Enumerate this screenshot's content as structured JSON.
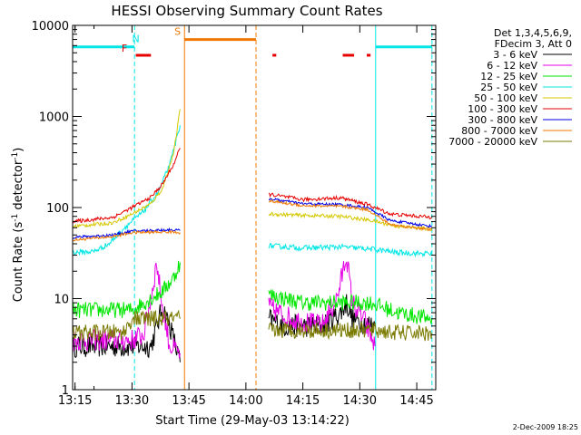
{
  "colors": {
    "background": "#ffffff",
    "axes": "#000000",
    "3-6 keV": "#000000",
    "6-12 keV": "#e600e6",
    "12-25 keV": "#00e600",
    "25-50 keV": "#00e6e6",
    "50-100 keV": "#d6c800",
    "100-300 keV": "#e60000",
    "300-800 keV": "#0000e6",
    "800-7000 keV": "#f07800",
    "7000-20000 keV": "#7a7a00",
    "night": "#00e6e6",
    "saa": "#f07800",
    "flare": "#e60000"
  },
  "legend": {
    "header_line1": "Det 1,3,4,5,6,9,",
    "header_line2": "FDecim 3, Att 0",
    "items": [
      {
        "label": "3 - 6 keV",
        "color": "#000000"
      },
      {
        "label": "6 - 12 keV",
        "color": "#e600e6"
      },
      {
        "label": "12 - 25 keV",
        "color": "#00e600"
      },
      {
        "label": "25 - 50 keV",
        "color": "#00e6e6"
      },
      {
        "label": "50 - 100 keV",
        "color": "#d6c800"
      },
      {
        "label": "100 - 300 keV",
        "color": "#e60000"
      },
      {
        "label": "300 - 800 keV",
        "color": "#0000e6"
      },
      {
        "label": "800 - 7000 keV",
        "color": "#f07800"
      },
      {
        "label": "7000 - 20000 keV",
        "color": "#7a7a00"
      }
    ]
  },
  "stamp": "2-Dec-2009 18:25",
  "chart_data": {
    "type": "line",
    "title": "HESSI Observing Summary Count Rates",
    "xlabel": "Start Time (29-May-03 13:14:22)",
    "ylabel": "Count Rate (s",
    "ylabel_sup": "-1",
    "ylabel_mid": " detector",
    "ylabel_end": ")",
    "y_scale": "log",
    "ylim": [
      1,
      10000
    ],
    "xlim": [
      "13:14:22",
      "14:50:00"
    ],
    "x_ticks": [
      "13:15",
      "13:30",
      "13:45",
      "14:00",
      "14:15",
      "14:30",
      "14:45"
    ],
    "y_ticks": [
      "1",
      "10",
      "100",
      "1000",
      "10000"
    ],
    "grid": false,
    "legend_position": "outside-right",
    "annotations": [
      {
        "text": "F",
        "x": "13:28",
        "color": "#e60000"
      },
      {
        "text": "N",
        "x": "13:31",
        "color": "#00e6e6"
      },
      {
        "text": "S",
        "x": "13:42",
        "color": "#f07800"
      }
    ],
    "vertical_markers": [
      {
        "x": "13:14:22",
        "style": "solid",
        "color": "#00e6e6"
      },
      {
        "x": "13:30:40",
        "style": "dashed",
        "color": "#00e6e6"
      },
      {
        "x": "13:43:50",
        "style": "solid",
        "color": "#f07800"
      },
      {
        "x": "14:02:40",
        "style": "dashed",
        "color": "#f07800"
      },
      {
        "x": "14:34:10",
        "style": "solid",
        "color": "#00e6e6"
      },
      {
        "x": "14:49:00",
        "style": "dashed",
        "color": "#00e6e6"
      }
    ],
    "status_bars": [
      {
        "name": "night",
        "start": "13:14:22",
        "end": "13:30:40",
        "y": 5800,
        "color": "#00e6e6"
      },
      {
        "name": "night",
        "start": "14:34:10",
        "end": "14:49:00",
        "y": 5800,
        "color": "#00e6e6"
      },
      {
        "name": "saa",
        "start": "13:43:50",
        "end": "14:02:40",
        "y": 7000,
        "color": "#f07800"
      },
      {
        "name": "flare",
        "start": "13:31:00",
        "end": "13:35:00",
        "y": 4700,
        "color": "#e60000"
      },
      {
        "name": "flare",
        "start": "14:07:00",
        "end": "14:08:00",
        "y": 4700,
        "color": "#e60000"
      },
      {
        "name": "flare",
        "start": "14:25:30",
        "end": "14:28:30",
        "y": 4700,
        "color": "#e60000"
      },
      {
        "name": "flare",
        "start": "14:31:50",
        "end": "14:32:50",
        "y": 4700,
        "color": "#e60000"
      }
    ],
    "series": [
      {
        "name": "3 - 6 keV",
        "color": "#000000",
        "noise": 0.25,
        "segments": [
          [
            [
              "13:14:22",
              3
            ],
            [
              "13:30:00",
              3
            ],
            [
              "13:35:00",
              3
            ],
            [
              "13:38:00",
              8
            ],
            [
              "13:40:00",
              5
            ],
            [
              "13:42:00",
              2.5
            ],
            [
              "13:42:40",
              2
            ]
          ],
          [
            [
              "14:06:00",
              6
            ],
            [
              "14:10:00",
              5
            ],
            [
              "14:15:00",
              5
            ],
            [
              "14:20:00",
              5
            ],
            [
              "14:25:00",
              7
            ],
            [
              "14:26:30",
              9
            ],
            [
              "14:28:00",
              6
            ],
            [
              "14:34:00",
              5
            ]
          ]
        ]
      },
      {
        "name": "6 - 12 keV",
        "color": "#e600e6",
        "noise": 0.25,
        "segments": [
          [
            [
              "13:14:22",
              3.5
            ],
            [
              "13:30:00",
              3.5
            ],
            [
              "13:33:00",
              4
            ],
            [
              "13:35:00",
              10
            ],
            [
              "13:36:30",
              25
            ],
            [
              "13:38:00",
              8
            ],
            [
              "13:40:00",
              3
            ],
            [
              "13:42:40",
              2.5
            ]
          ],
          [
            [
              "14:06:00",
              8
            ],
            [
              "14:12:00",
              6
            ],
            [
              "14:20:00",
              5
            ],
            [
              "14:24:00",
              10
            ],
            [
              "14:26:30",
              30
            ],
            [
              "14:28:00",
              9
            ],
            [
              "14:31:00",
              6
            ],
            [
              "14:34:00",
              3
            ]
          ]
        ]
      },
      {
        "name": "12 - 25 keV",
        "color": "#00e600",
        "noise": 0.18,
        "segments": [
          [
            [
              "13:14:22",
              7.5
            ],
            [
              "13:30:00",
              7.5
            ],
            [
              "13:35:00",
              10
            ],
            [
              "13:38:00",
              12
            ],
            [
              "13:41:00",
              17
            ],
            [
              "13:42:40",
              25
            ]
          ],
          [
            [
              "14:06:00",
              11
            ],
            [
              "14:15:00",
              9
            ],
            [
              "14:25:00",
              9
            ],
            [
              "14:33:00",
              9
            ],
            [
              "14:40:00",
              7
            ],
            [
              "14:49:00",
              6
            ]
          ]
        ]
      },
      {
        "name": "25 - 50 keV",
        "color": "#00e6e6",
        "noise": 0.06,
        "segments": [
          [
            [
              "13:14:22",
              32
            ],
            [
              "13:20:00",
              33
            ],
            [
              "13:24:00",
              40
            ],
            [
              "13:28:00",
              60
            ],
            [
              "13:33:00",
              90
            ],
            [
              "13:37:00",
              150
            ],
            [
              "13:40:00",
              300
            ],
            [
              "13:42:40",
              800
            ]
          ],
          [
            [
              "14:06:00",
              38
            ],
            [
              "14:15:00",
              36
            ],
            [
              "14:25:00",
              37
            ],
            [
              "14:33:00",
              35
            ],
            [
              "14:40:00",
              32
            ],
            [
              "14:49:00",
              31
            ]
          ]
        ]
      },
      {
        "name": "50 - 100 keV",
        "color": "#d6c800",
        "noise": 0.04,
        "segments": [
          [
            [
              "13:14:22",
              62
            ],
            [
              "13:25:00",
              68
            ],
            [
              "13:30:00",
              85
            ],
            [
              "13:35:00",
              110
            ],
            [
              "13:38:00",
              160
            ],
            [
              "13:41:00",
              400
            ],
            [
              "13:42:40",
              1200
            ]
          ],
          [
            [
              "14:06:00",
              85
            ],
            [
              "14:15:00",
              82
            ],
            [
              "14:25:00",
              80
            ],
            [
              "14:33:00",
              72
            ],
            [
              "14:40:00",
              62
            ],
            [
              "14:49:00",
              58
            ]
          ]
        ]
      },
      {
        "name": "100 - 300 keV",
        "color": "#e60000",
        "noise": 0.04,
        "segments": [
          [
            [
              "13:14:22",
              70
            ],
            [
              "13:25:00",
              78
            ],
            [
              "13:30:00",
              100
            ],
            [
              "13:35:00",
              130
            ],
            [
              "13:38:00",
              180
            ],
            [
              "13:41:00",
              300
            ],
            [
              "13:42:40",
              450
            ]
          ],
          [
            [
              "14:06:00",
              140
            ],
            [
              "14:15:00",
              122
            ],
            [
              "14:25:00",
              128
            ],
            [
              "14:32:00",
              108
            ],
            [
              "14:38:00",
              85
            ],
            [
              "14:49:00",
              78
            ]
          ]
        ]
      },
      {
        "name": "300 - 800 keV",
        "color": "#0000e6",
        "noise": 0.03,
        "segments": [
          [
            [
              "13:14:22",
              47
            ],
            [
              "13:25:00",
              50
            ],
            [
              "13:30:00",
              55
            ],
            [
              "13:40:00",
              57
            ],
            [
              "13:42:40",
              56
            ]
          ],
          [
            [
              "14:06:00",
              125
            ],
            [
              "14:15:00",
              110
            ],
            [
              "14:25:00",
              108
            ],
            [
              "14:32:00",
              100
            ],
            [
              "14:38:00",
              72
            ],
            [
              "14:49:00",
              62
            ]
          ]
        ]
      },
      {
        "name": "800 - 7000 keV",
        "color": "#f07800",
        "noise": 0.03,
        "segments": [
          [
            [
              "13:14:22",
              44
            ],
            [
              "13:25:00",
              48
            ],
            [
              "13:30:00",
              53
            ],
            [
              "13:40:00",
              54
            ],
            [
              "13:42:40",
              53
            ]
          ],
          [
            [
              "14:06:00",
              118
            ],
            [
              "14:15:00",
              105
            ],
            [
              "14:25:00",
              103
            ],
            [
              "14:32:00",
              95
            ],
            [
              "14:38:00",
              65
            ],
            [
              "14:49:00",
              57
            ]
          ]
        ]
      },
      {
        "name": "7000 - 20000 keV",
        "color": "#7a7a00",
        "noise": 0.18,
        "segments": [
          [
            [
              "13:14:22",
              4.2
            ],
            [
              "13:28:00",
              4.3
            ],
            [
              "13:30:00",
              6
            ],
            [
              "13:42:40",
              6
            ]
          ],
          [
            [
              "14:06:00",
              4.5
            ],
            [
              "14:20:00",
              4.5
            ],
            [
              "14:34:00",
              4.5
            ],
            [
              "14:40:00",
              4.2
            ],
            [
              "14:49:00",
              4.2
            ]
          ]
        ]
      }
    ]
  }
}
